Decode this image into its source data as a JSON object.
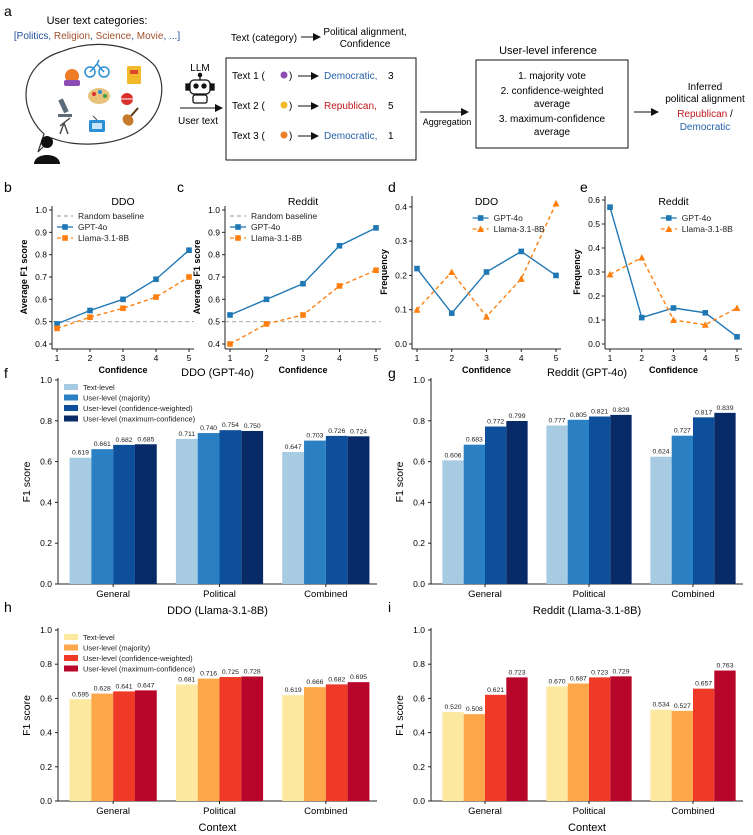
{
  "panel_a": {
    "letter": "a",
    "categories_title": "User text categories:",
    "categories": [
      {
        "text": "[",
        "color": "#1f4e99"
      },
      {
        "text": "Politics",
        "color": "#1f4e99"
      },
      {
        "text": ", ",
        "color": "#1f4e99"
      },
      {
        "text": "Religion",
        "color": "#a0522d"
      },
      {
        "text": ", ",
        "color": "#1f4e99"
      },
      {
        "text": "Science",
        "color": "#a0522d"
      },
      {
        "text": ", ",
        "color": "#1f4e99"
      },
      {
        "text": "Movie",
        "color": "#a0522d"
      },
      {
        "text": ", ...]",
        "color": "#1f4e99"
      }
    ],
    "llm_label": "LLM",
    "user_text_label": "User text",
    "input_header": "Text (category)",
    "output_header": "Political alignment,\nConfidence",
    "texts": [
      {
        "label": "Text 1 (",
        "close": ")",
        "party": "Democratic,",
        "conf": "3",
        "color": "#2563a8"
      },
      {
        "label": "Text 2 (",
        "close": ")",
        "party": "Republican,",
        "conf": "5",
        "color": "#c0181b"
      },
      {
        "label": "Text 3 (",
        "close": ")",
        "party": "Democratic,",
        "conf": "1",
        "color": "#2563a8"
      }
    ],
    "aggregation_label": "Aggregation",
    "inference_title": "User-level inference",
    "methods": [
      "1.  majority vote",
      "2.  confidence-weighted",
      "average",
      "3.  maximum-confidence",
      "average"
    ],
    "inferred_title": "Inferred\npolitical alignment",
    "inferred_rep": "Republican",
    "inferred_sep": " /",
    "inferred_dem": "Democratic",
    "rep_color": "#c0181b",
    "dem_color": "#2563a8"
  },
  "chart_data": [
    {
      "id": "b",
      "type": "line",
      "title": "DDO",
      "xlabel": "Confidence",
      "ylabel": "Average F1 score",
      "x": [
        1,
        2,
        3,
        4,
        5
      ],
      "xlim": [
        1,
        5
      ],
      "ylim": [
        0.4,
        1.0
      ],
      "yticks": [
        "0.4",
        "0.5",
        "0.6",
        "0.7",
        "0.8",
        "0.9",
        "1.0"
      ],
      "baseline": {
        "name": "Random baseline",
        "value": 0.5
      },
      "series": [
        {
          "name": "GPT-4o",
          "values": [
            0.49,
            0.55,
            0.6,
            0.69,
            0.82
          ],
          "color": "#1f77b4",
          "marker": "square",
          "dash": "solid"
        },
        {
          "name": "Llama-3.1-8B",
          "values": [
            0.47,
            0.52,
            0.56,
            0.61,
            0.7
          ],
          "color": "#ff7f0e",
          "marker": "square",
          "dash": "dashed"
        }
      ],
      "legend": "top-left"
    },
    {
      "id": "c",
      "type": "line",
      "title": "Reddit",
      "xlabel": "Confidence",
      "ylabel": "Average F1 score",
      "x": [
        1,
        2,
        3,
        4,
        5
      ],
      "xlim": [
        1,
        5
      ],
      "ylim": [
        0.4,
        1.0
      ],
      "yticks": [
        "0.4",
        "0.5",
        "0.6",
        "0.7",
        "0.8",
        "0.9",
        "1.0"
      ],
      "baseline": {
        "name": "Random baseline",
        "value": 0.5
      },
      "series": [
        {
          "name": "GPT-4o",
          "values": [
            0.53,
            0.6,
            0.67,
            0.84,
            0.92
          ],
          "color": "#1f77b4",
          "marker": "square",
          "dash": "solid"
        },
        {
          "name": "Llama-3.1-8B",
          "values": [
            0.4,
            0.49,
            0.53,
            0.66,
            0.73
          ],
          "color": "#ff7f0e",
          "marker": "square",
          "dash": "dashed"
        }
      ],
      "legend": "top-left"
    },
    {
      "id": "d",
      "type": "line",
      "title": "DDO",
      "xlabel": "Confidence",
      "ylabel": "Frequency",
      "x": [
        1,
        2,
        3,
        4,
        5
      ],
      "xlim": [
        1,
        5
      ],
      "ylim": [
        0.0,
        0.42
      ],
      "yticks": [
        "0.0",
        "0.1",
        "0.2",
        "0.3",
        "0.4"
      ],
      "series": [
        {
          "name": "GPT-4o",
          "values": [
            0.22,
            0.09,
            0.21,
            0.27,
            0.2
          ],
          "color": "#1f77b4",
          "marker": "square",
          "dash": "solid"
        },
        {
          "name": "Llama-3.1-8B",
          "values": [
            0.1,
            0.21,
            0.08,
            0.19,
            0.41
          ],
          "color": "#ff7f0e",
          "marker": "triangle",
          "dash": "dashed"
        }
      ],
      "legend": "top-right"
    },
    {
      "id": "e",
      "type": "line",
      "title": "Reddit",
      "xlabel": "Confidence",
      "ylabel": "Frequency",
      "x": [
        1,
        2,
        3,
        4,
        5
      ],
      "xlim": [
        1,
        5
      ],
      "ylim": [
        0.0,
        0.6
      ],
      "yticks": [
        "0.0",
        "0.1",
        "0.2",
        "0.3",
        "0.4",
        "0.5",
        "0.6"
      ],
      "series": [
        {
          "name": "GPT-4o",
          "values": [
            0.57,
            0.11,
            0.15,
            0.13,
            0.03
          ],
          "color": "#1f77b4",
          "marker": "square",
          "dash": "solid"
        },
        {
          "name": "Llama-3.1-8B",
          "values": [
            0.29,
            0.36,
            0.1,
            0.08,
            0.15
          ],
          "color": "#ff7f0e",
          "marker": "triangle",
          "dash": "dashed"
        }
      ],
      "legend": "top-right"
    },
    {
      "id": "f",
      "type": "bar",
      "title": "DDO (GPT-4o)",
      "xlabel": "",
      "ylabel": "F1 score",
      "categories": [
        "General",
        "Political",
        "Combined"
      ],
      "ylim": [
        0.0,
        1.0
      ],
      "yticks": [
        "0.0",
        "0.2",
        "0.4",
        "0.6",
        "0.8",
        "1.0"
      ],
      "series": [
        {
          "name": "Text-level",
          "values": [
            0.619,
            0.711,
            0.647
          ],
          "color": "#a6cbe3"
        },
        {
          "name": "User-level (majority)",
          "values": [
            0.661,
            0.74,
            0.703
          ],
          "color": "#2b80c4"
        },
        {
          "name": "User-level (confidence-weighted)",
          "values": [
            0.682,
            0.754,
            0.726
          ],
          "color": "#0d4f9a"
        },
        {
          "name": "User-level (maximum-confidence)",
          "values": [
            0.685,
            0.75,
            0.724
          ],
          "color": "#082a66"
        }
      ],
      "value_labels": [
        [
          "0.619",
          "0.711",
          "0.647"
        ],
        [
          "0.661",
          "0.740",
          "0.703"
        ],
        [
          "0.682",
          "0.754",
          "0.726"
        ],
        [
          "0.685",
          "0.750",
          "0.724"
        ]
      ],
      "legend": "top-left"
    },
    {
      "id": "g",
      "type": "bar",
      "title": "Reddit (GPT-4o)",
      "xlabel": "",
      "ylabel": "F1 score",
      "categories": [
        "General",
        "Political",
        "Combined"
      ],
      "ylim": [
        0.0,
        1.0
      ],
      "yticks": [
        "0.0",
        "0.2",
        "0.4",
        "0.6",
        "0.8",
        "1.0"
      ],
      "series": [
        {
          "name": "Text-level",
          "values": [
            0.606,
            0.777,
            0.624
          ],
          "color": "#a6cbe3"
        },
        {
          "name": "User-level (majority)",
          "values": [
            0.683,
            0.805,
            0.727
          ],
          "color": "#2b80c4"
        },
        {
          "name": "User-level (confidence-weighted)",
          "values": [
            0.772,
            0.821,
            0.817
          ],
          "color": "#0d4f9a"
        },
        {
          "name": "User-level (maximum-confidence)",
          "values": [
            0.799,
            0.829,
            0.839
          ],
          "color": "#082a66"
        }
      ],
      "value_labels": [
        [
          "0.606",
          "0.777",
          "0.624"
        ],
        [
          "0.683",
          "0.805",
          "0.727"
        ],
        [
          "0.772",
          "0.821",
          "0.817"
        ],
        [
          "0.799",
          "0.829",
          "0.839"
        ]
      ],
      "legend": "none"
    },
    {
      "id": "h",
      "type": "bar",
      "title": "DDO (Llama-3.1-8B)",
      "xlabel": "Context",
      "ylabel": "F1 score",
      "categories": [
        "General",
        "Political",
        "Combined"
      ],
      "ylim": [
        0.0,
        1.0
      ],
      "yticks": [
        "0.0",
        "0.2",
        "0.4",
        "0.6",
        "0.8",
        "1.0"
      ],
      "series": [
        {
          "name": "Text-level",
          "values": [
            0.595,
            0.681,
            0.619
          ],
          "color": "#fde8a0"
        },
        {
          "name": "User-level (majority)",
          "values": [
            0.628,
            0.716,
            0.666
          ],
          "color": "#fca84a"
        },
        {
          "name": "User-level (confidence-weighted)",
          "values": [
            0.641,
            0.725,
            0.682
          ],
          "color": "#ee3a27"
        },
        {
          "name": "User-level (maximum-confidence)",
          "values": [
            0.647,
            0.728,
            0.695
          ],
          "color": "#b8062b"
        }
      ],
      "value_labels": [
        [
          "0.595",
          "0.681",
          "0.619"
        ],
        [
          "0.628",
          "0.716",
          "0.666"
        ],
        [
          "0.641",
          "0.725",
          "0.682"
        ],
        [
          "0.647",
          "0.728",
          "0.695"
        ]
      ],
      "legend": "top-left"
    },
    {
      "id": "i",
      "type": "bar",
      "title": "Reddit (Llama-3.1-8B)",
      "xlabel": "Context",
      "ylabel": "F1 score",
      "categories": [
        "General",
        "Political",
        "Combined"
      ],
      "ylim": [
        0.0,
        1.0
      ],
      "yticks": [
        "0.0",
        "0.2",
        "0.4",
        "0.6",
        "0.8",
        "1.0"
      ],
      "series": [
        {
          "name": "Text-level",
          "values": [
            0.52,
            0.67,
            0.534
          ],
          "color": "#fde8a0"
        },
        {
          "name": "User-level (majority)",
          "values": [
            0.508,
            0.687,
            0.527
          ],
          "color": "#fca84a"
        },
        {
          "name": "User-level (confidence-weighted)",
          "values": [
            0.621,
            0.723,
            0.657
          ],
          "color": "#ee3a27"
        },
        {
          "name": "User-level (maximum-confidence)",
          "values": [
            0.723,
            0.729,
            0.763
          ],
          "color": "#b8062b"
        }
      ],
      "value_labels": [
        [
          "0.520",
          "0.670",
          "0.534"
        ],
        [
          "0.508",
          "0.687",
          "0.527"
        ],
        [
          "0.621",
          "0.723",
          "0.657"
        ],
        [
          "0.723",
          "0.729",
          "0.763"
        ]
      ],
      "legend": "none"
    }
  ]
}
